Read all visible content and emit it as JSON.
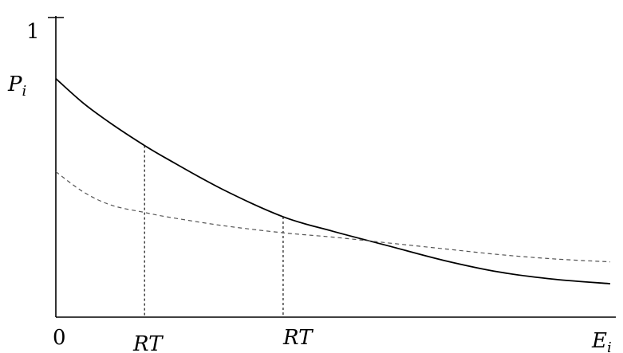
{
  "chart_data": {
    "type": "line",
    "title": "",
    "ylabel": "P_i",
    "xlabel": "E_i",
    "xlim": [
      0,
      10
    ],
    "ylim": [
      0,
      1.03
    ],
    "y_ticks": [
      {
        "value": 1,
        "label": "1"
      }
    ],
    "x_ticks": [
      {
        "value": 0,
        "label": "0"
      },
      {
        "value": 1.6,
        "label": "RT"
      },
      {
        "value": 4.1,
        "label": "RT"
      }
    ],
    "series": [
      {
        "style": "solid",
        "color": "#000000",
        "x": [
          0,
          0.5,
          1,
          1.6,
          2,
          3,
          4.1,
          5,
          6,
          7,
          8,
          9,
          10
        ],
        "y": [
          0.82,
          0.735,
          0.665,
          0.59,
          0.545,
          0.44,
          0.345,
          0.295,
          0.245,
          0.195,
          0.155,
          0.13,
          0.115
        ]
      },
      {
        "style": "dashed",
        "color": "#555555",
        "x": [
          0,
          0.5,
          1,
          1.6,
          2,
          3,
          4.1,
          5,
          6,
          7,
          8,
          9,
          10
        ],
        "y": [
          0.5,
          0.43,
          0.385,
          0.36,
          0.345,
          0.315,
          0.29,
          0.275,
          0.255,
          0.235,
          0.215,
          0.2,
          0.19
        ]
      }
    ],
    "guides": [
      {
        "x": 1.6,
        "series_index": 0
      },
      {
        "x": 4.1,
        "series_index": 0
      }
    ],
    "annotations": {
      "p_label": "P",
      "p_sub": "i",
      "e_label": "E",
      "e_sub": "i"
    },
    "grid": false,
    "legend": "none"
  }
}
